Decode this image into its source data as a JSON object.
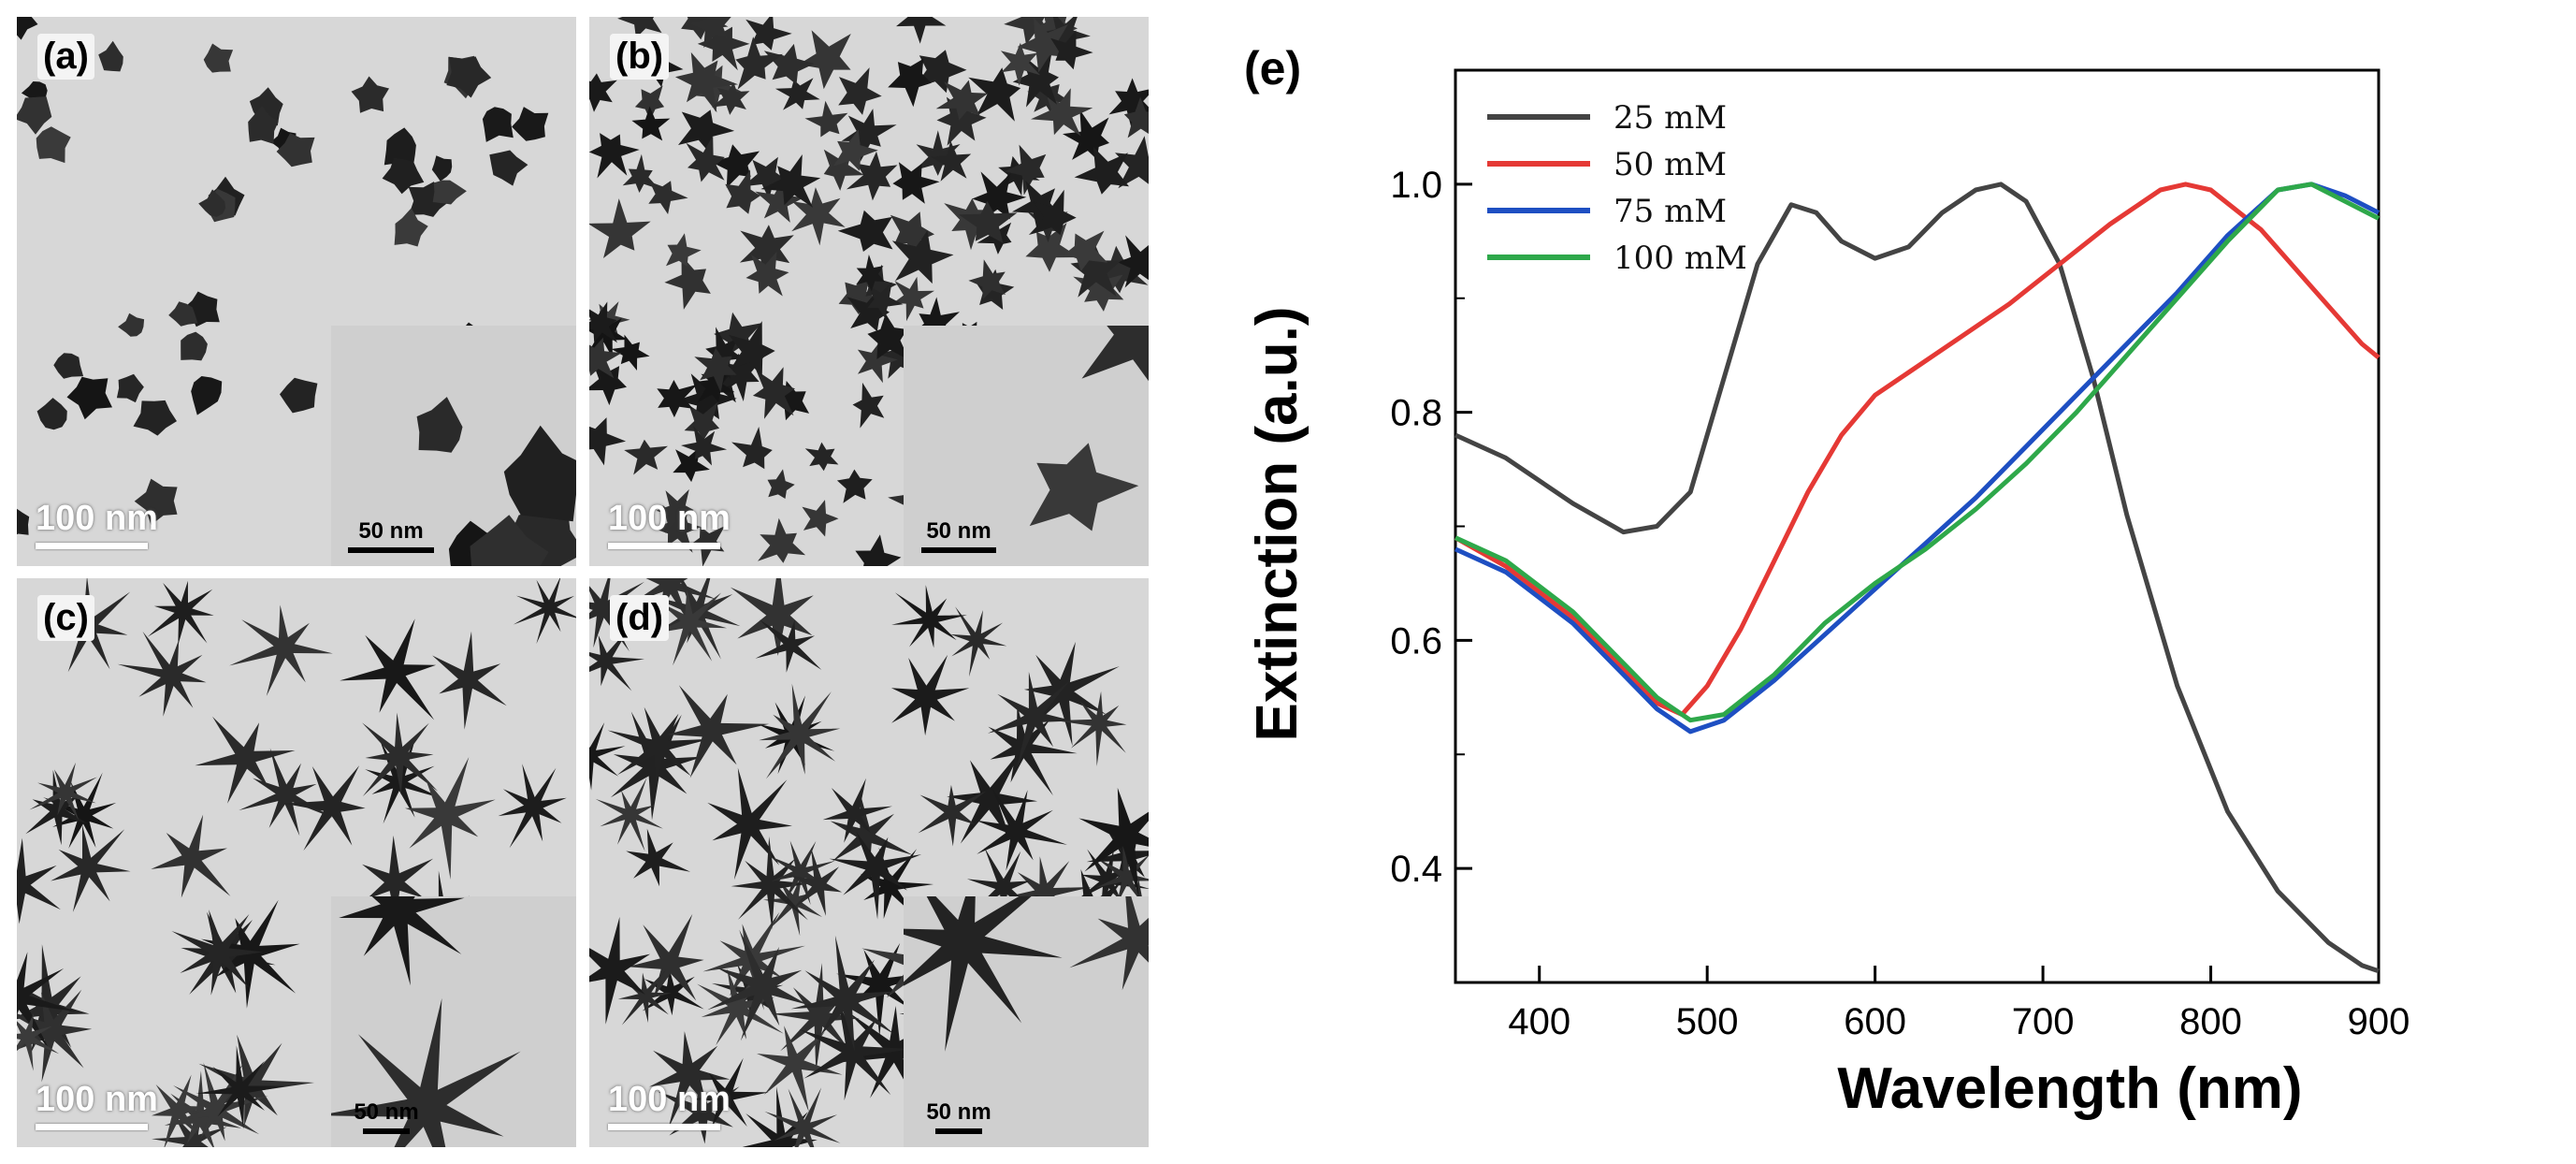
{
  "panels": [
    {
      "label": "(a)",
      "scale_main": "100 nm",
      "scale_inset": "50 nm",
      "shape": "pentagon"
    },
    {
      "label": "(b)",
      "scale_main": "100 nm",
      "scale_inset": "50 nm",
      "shape": "star-short"
    },
    {
      "label": "(c)",
      "scale_main": "100 nm",
      "scale_inset": "50 nm",
      "shape": "star-long"
    },
    {
      "label": "(d)",
      "scale_main": "100 nm",
      "scale_inset": "50 nm",
      "shape": "star-long"
    }
  ],
  "chart_data": {
    "type": "line",
    "panel_label": "(e)",
    "title": "",
    "xlabel": "Wavelength (nm)",
    "ylabel": "Extinction (a.u.)",
    "xlim": [
      350,
      900
    ],
    "ylim": [
      0.3,
      1.1
    ],
    "xticks": [
      400,
      500,
      600,
      700,
      800,
      900
    ],
    "yticks": [
      0.4,
      0.6,
      0.8,
      1.0
    ],
    "ytick_labels": [
      "0.4",
      "0.6",
      "0.8",
      "1.0"
    ],
    "series": [
      {
        "name": "25  mM",
        "color": "#444444",
        "x": [
          350,
          380,
          420,
          450,
          470,
          490,
          510,
          530,
          550,
          565,
          580,
          600,
          620,
          640,
          660,
          675,
          690,
          710,
          730,
          750,
          780,
          810,
          840,
          870,
          890,
          900
        ],
        "y": [
          0.78,
          0.76,
          0.72,
          0.695,
          0.7,
          0.73,
          0.83,
          0.93,
          0.982,
          0.975,
          0.95,
          0.935,
          0.945,
          0.975,
          0.995,
          1.0,
          0.985,
          0.93,
          0.83,
          0.71,
          0.56,
          0.45,
          0.38,
          0.335,
          0.315,
          0.31
        ]
      },
      {
        "name": "50  mM",
        "color": "#e53935",
        "x": [
          350,
          380,
          420,
          450,
          470,
          485,
          500,
          520,
          540,
          560,
          580,
          600,
          620,
          650,
          680,
          710,
          740,
          770,
          785,
          800,
          830,
          860,
          890,
          900
        ],
        "y": [
          0.69,
          0.665,
          0.62,
          0.575,
          0.545,
          0.535,
          0.56,
          0.61,
          0.67,
          0.73,
          0.78,
          0.815,
          0.835,
          0.865,
          0.895,
          0.93,
          0.965,
          0.995,
          1.0,
          0.995,
          0.96,
          0.91,
          0.86,
          0.848
        ]
      },
      {
        "name": "75  mM",
        "color": "#1e4fc2",
        "x": [
          350,
          380,
          420,
          450,
          470,
          490,
          510,
          540,
          570,
          600,
          630,
          660,
          690,
          720,
          750,
          780,
          810,
          840,
          860,
          880,
          900
        ],
        "y": [
          0.68,
          0.66,
          0.615,
          0.57,
          0.54,
          0.52,
          0.53,
          0.565,
          0.605,
          0.645,
          0.685,
          0.725,
          0.77,
          0.815,
          0.86,
          0.905,
          0.955,
          0.995,
          1.0,
          0.99,
          0.975
        ]
      },
      {
        "name": "100  mM",
        "color": "#2ea84a",
        "x": [
          350,
          380,
          420,
          450,
          470,
          490,
          510,
          540,
          570,
          600,
          630,
          660,
          690,
          720,
          750,
          780,
          810,
          840,
          860,
          880,
          900
        ],
        "y": [
          0.69,
          0.67,
          0.625,
          0.58,
          0.55,
          0.53,
          0.535,
          0.57,
          0.615,
          0.65,
          0.68,
          0.715,
          0.755,
          0.8,
          0.85,
          0.9,
          0.95,
          0.995,
          1.0,
          0.985,
          0.97
        ]
      }
    ]
  }
}
